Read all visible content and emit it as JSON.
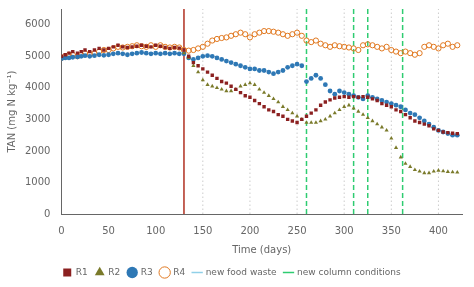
{
  "chart_data": {
    "type": "scatter",
    "xlabel": "Time (days)",
    "ylabel": "TAN (mg N kg⁻¹)",
    "xlim": [
      0,
      425
    ],
    "ylim": [
      0,
      6500
    ],
    "xticks": [
      0,
      50,
      100,
      150,
      200,
      250,
      300,
      350,
      400
    ],
    "yticks": [
      0,
      1000,
      2000,
      3000,
      4000,
      5000,
      6000
    ],
    "grid": false,
    "legend": "bottom",
    "vlines": [
      {
        "x": [
          130
        ],
        "color": "#B03020",
        "line_style": "solid"
      },
      {
        "x": [
          150,
          200,
          250,
          300,
          350,
          400
        ],
        "color": "#CCCCCC",
        "line_style": "dotted"
      }
    ],
    "series": [
      {
        "name": "new food waste",
        "type": "vline",
        "color": "#90D0E8",
        "line_style": "dotted",
        "x": []
      },
      {
        "name": "new column conditions",
        "type": "vline",
        "color": "#2ECC71",
        "line_style": "dashed",
        "x": [
          260,
          310,
          325,
          362
        ]
      },
      {
        "name": "R1",
        "type": "scatter",
        "color": "#8B2020",
        "marker": "square",
        "x": [
          0,
          4,
          8,
          12,
          17,
          21,
          25,
          30,
          35,
          40,
          45,
          50,
          55,
          60,
          65,
          70,
          75,
          80,
          85,
          90,
          95,
          100,
          105,
          110,
          115,
          120,
          125,
          130,
          135,
          140,
          145,
          150,
          155,
          160,
          165,
          170,
          175,
          180,
          185,
          190,
          195,
          200,
          205,
          210,
          215,
          220,
          225,
          230,
          235,
          240,
          245,
          250,
          255,
          260,
          265,
          270,
          275,
          280,
          285,
          290,
          295,
          300,
          305,
          310,
          315,
          320,
          325,
          330,
          335,
          340,
          345,
          350,
          355,
          360,
          365,
          370,
          375,
          380,
          385,
          390,
          395,
          400,
          405,
          410,
          415,
          420
        ],
        "values": [
          5000,
          5050,
          5100,
          5150,
          5100,
          5150,
          5200,
          5150,
          5200,
          5250,
          5200,
          5250,
          5300,
          5350,
          5300,
          5280,
          5300,
          5320,
          5350,
          5320,
          5300,
          5350,
          5320,
          5280,
          5250,
          5280,
          5260,
          5200,
          5000,
          4800,
          4700,
          4600,
          4500,
          4400,
          4300,
          4200,
          4150,
          4050,
          3950,
          3850,
          3750,
          3700,
          3600,
          3500,
          3400,
          3300,
          3250,
          3150,
          3100,
          3000,
          2950,
          2900,
          3000,
          3100,
          3200,
          3300,
          3450,
          3550,
          3620,
          3680,
          3700,
          3720,
          3700,
          3720,
          3700,
          3720,
          3700,
          3650,
          3600,
          3500,
          3450,
          3400,
          3300,
          3250,
          3150,
          3050,
          2950,
          2900,
          2850,
          2800,
          2700,
          2650,
          2600,
          2580,
          2560,
          2550
        ]
      },
      {
        "name": "R2",
        "type": "scatter",
        "color": "#7A7A2A",
        "marker": "triangle",
        "x": [
          130,
          135,
          140,
          145,
          150,
          155,
          160,
          165,
          170,
          175,
          180,
          185,
          190,
          195,
          200,
          205,
          210,
          215,
          220,
          225,
          230,
          235,
          240,
          245,
          250,
          255,
          260,
          265,
          270,
          275,
          280,
          285,
          290,
          295,
          300,
          305,
          310,
          315,
          320,
          325,
          330,
          335,
          340,
          345,
          350,
          355,
          360,
          365,
          370,
          375,
          380,
          385,
          390,
          395,
          400,
          405,
          410,
          415,
          420
        ],
        "values": [
          5100,
          4950,
          4700,
          4500,
          4250,
          4100,
          4050,
          4000,
          3950,
          3900,
          3900,
          3950,
          4050,
          4100,
          4150,
          4100,
          3950,
          3850,
          3750,
          3650,
          3550,
          3400,
          3300,
          3200,
          3100,
          3000,
          2900,
          2900,
          2900,
          2950,
          3000,
          3100,
          3200,
          3300,
          3400,
          3450,
          3350,
          3250,
          3150,
          3050,
          2950,
          2850,
          2750,
          2650,
          2400,
          2100,
          1800,
          1600,
          1500,
          1400,
          1350,
          1300,
          1300,
          1350,
          1380,
          1360,
          1340,
          1330,
          1320
        ]
      },
      {
        "name": "R3",
        "type": "scatter",
        "color": "#2E78B5",
        "marker": "circle",
        "x": [
          0,
          4,
          8,
          12,
          17,
          21,
          25,
          30,
          35,
          40,
          45,
          50,
          55,
          60,
          65,
          70,
          75,
          80,
          85,
          90,
          95,
          100,
          105,
          110,
          115,
          120,
          125,
          130,
          135,
          140,
          145,
          150,
          155,
          160,
          165,
          170,
          175,
          180,
          185,
          190,
          195,
          200,
          205,
          210,
          215,
          220,
          225,
          230,
          235,
          240,
          245,
          250,
          255,
          260,
          265,
          270,
          275,
          280,
          285,
          290,
          295,
          300,
          305,
          310,
          315,
          320,
          325,
          330,
          335,
          340,
          345,
          350,
          355,
          360,
          365,
          370,
          375,
          380,
          385,
          390,
          395,
          400,
          405,
          410,
          415,
          420
        ],
        "values": [
          4920,
          4950,
          4950,
          4970,
          4980,
          5000,
          5020,
          5000,
          5020,
          5050,
          5030,
          5050,
          5080,
          5100,
          5080,
          5050,
          5080,
          5100,
          5120,
          5100,
          5080,
          5100,
          5080,
          5100,
          5080,
          5100,
          5080,
          5080,
          4950,
          4900,
          4950,
          5000,
          5020,
          5000,
          4950,
          4900,
          4850,
          4800,
          4750,
          4700,
          4650,
          4600,
          4600,
          4550,
          4550,
          4500,
          4450,
          4500,
          4550,
          4650,
          4700,
          4750,
          4700,
          4200,
          4300,
          4400,
          4300,
          4100,
          3900,
          3800,
          3900,
          3850,
          3800,
          3750,
          3700,
          3650,
          3750,
          3700,
          3650,
          3600,
          3550,
          3500,
          3450,
          3400,
          3300,
          3200,
          3150,
          3050,
          2950,
          2850,
          2750,
          2650,
          2600,
          2550,
          2500,
          2500
        ]
      },
      {
        "name": "R4",
        "type": "scatter",
        "color": "#E07820",
        "marker": "open_circle",
        "x": [
          0,
          4,
          8,
          12,
          17,
          21,
          25,
          30,
          35,
          40,
          45,
          50,
          55,
          60,
          65,
          70,
          75,
          80,
          85,
          90,
          95,
          100,
          105,
          110,
          115,
          120,
          125,
          130,
          135,
          140,
          145,
          150,
          155,
          160,
          165,
          170,
          175,
          180,
          185,
          190,
          195,
          200,
          205,
          210,
          215,
          220,
          225,
          230,
          235,
          240,
          245,
          250,
          255,
          260,
          265,
          270,
          275,
          280,
          285,
          290,
          295,
          300,
          305,
          310,
          315,
          320,
          325,
          330,
          335,
          340,
          345,
          350,
          355,
          360,
          365,
          370,
          375,
          380,
          385,
          390,
          395,
          400,
          405,
          410,
          415,
          420
        ],
        "values": [
          4950,
          5000,
          5050,
          5050,
          5000,
          5050,
          5100,
          5080,
          5100,
          5150,
          5200,
          5200,
          5250,
          5300,
          5280,
          5300,
          5320,
          5350,
          5320,
          5300,
          5350,
          5300,
          5350,
          5300,
          5280,
          5300,
          5280,
          5200,
          5180,
          5200,
          5250,
          5300,
          5400,
          5500,
          5550,
          5580,
          5600,
          5650,
          5700,
          5750,
          5700,
          5600,
          5700,
          5750,
          5800,
          5800,
          5780,
          5750,
          5700,
          5650,
          5700,
          5750,
          5650,
          5500,
          5450,
          5500,
          5400,
          5350,
          5300,
          5350,
          5320,
          5300,
          5280,
          5250,
          5200,
          5350,
          5380,
          5350,
          5300,
          5250,
          5300,
          5200,
          5150,
          5100,
          5150,
          5100,
          5050,
          5100,
          5300,
          5350,
          5300,
          5250,
          5350,
          5400,
          5300,
          5350
        ]
      }
    ]
  }
}
